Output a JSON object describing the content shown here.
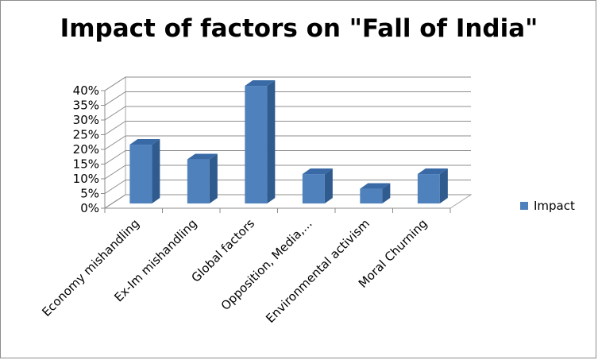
{
  "chart_data": {
    "type": "bar",
    "title": "Impact of factors on \"Fall of India\"",
    "xlabel": "",
    "ylabel": "",
    "categories": [
      "Economy mishandling",
      "Ex-Im mishandling",
      "Global factors",
      "Opposition, Media,...",
      "Environmental activism",
      "Moral Churning"
    ],
    "series": [
      {
        "name": "Impact",
        "values": [
          20,
          15,
          40,
          10,
          5,
          10
        ]
      }
    ],
    "y_ticks": [
      "0%",
      "5%",
      "10%",
      "15%",
      "20%",
      "25%",
      "30%",
      "35%",
      "40%"
    ],
    "ylim": [
      0,
      40
    ],
    "grid": true,
    "legend": "right",
    "bar_color": "#4f81bd",
    "style": "3d-column"
  }
}
